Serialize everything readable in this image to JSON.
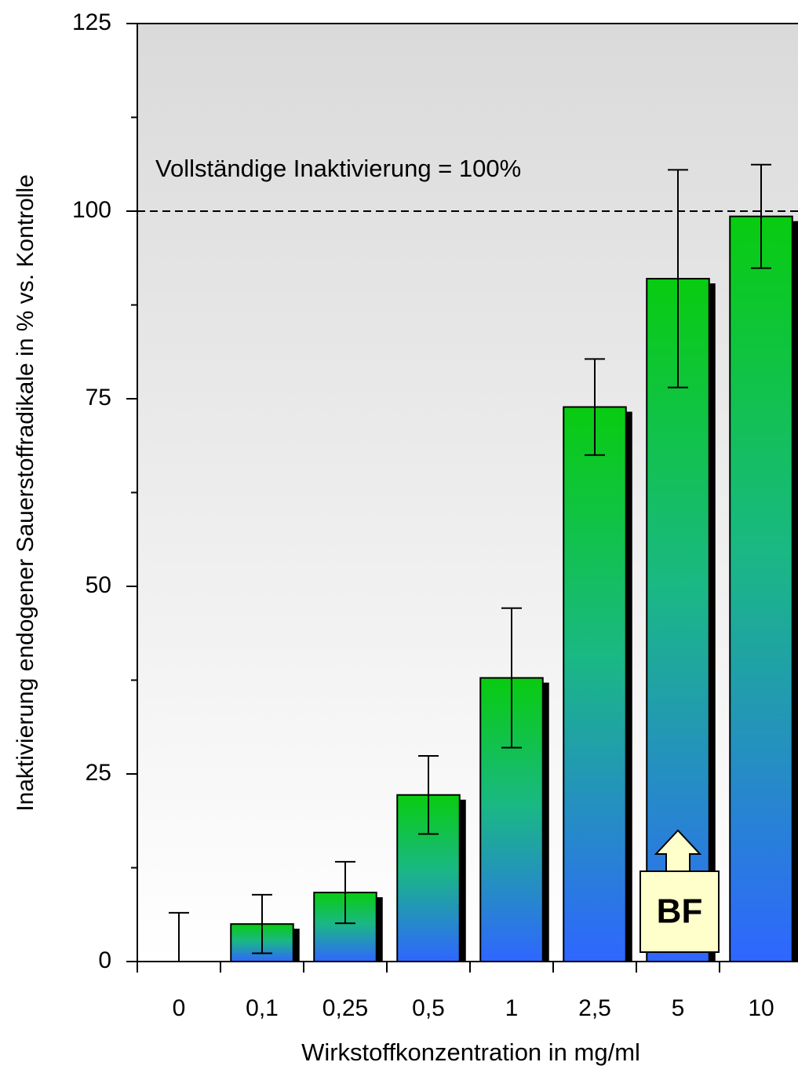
{
  "chart_data": {
    "type": "bar",
    "categories": [
      "0",
      "0,1",
      "0,25",
      "0,5",
      "1",
      "2,5",
      "5",
      "10"
    ],
    "values": [
      0,
      5.0,
      9.2,
      22.2,
      37.8,
      73.9,
      91.0,
      99.3
    ],
    "errors": [
      6.5,
      3.9,
      4.1,
      5.2,
      9.3,
      6.4,
      14.5,
      6.9
    ],
    "x_label": "Wirkstoffkonzentration in mg/ml",
    "y_label": "Inaktivierung endogener Sauerstoffradikale in % vs. Kontrolle",
    "ylim": [
      0,
      125
    ],
    "yticks": [
      0,
      25,
      50,
      75,
      100,
      125
    ],
    "reference_line": {
      "value": 100,
      "label": "Vollständige Inaktivierung = 100%"
    },
    "annotation": "BF"
  }
}
